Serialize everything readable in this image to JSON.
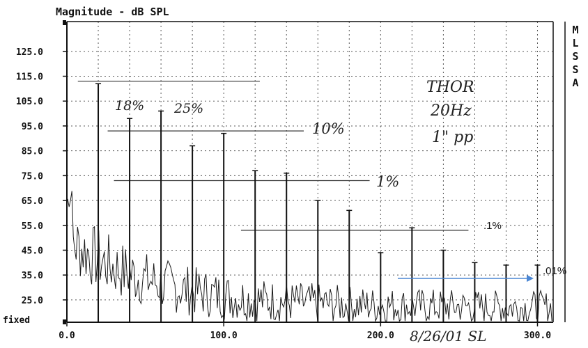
{
  "chart_data": {
    "type": "line",
    "title": "Magnitude - dB SPL",
    "side_label": [
      "M",
      "L",
      "S",
      "S",
      "A"
    ],
    "xlim": [
      0,
      310
    ],
    "ylim": [
      16,
      137
    ],
    "x_ticks": [
      0,
      100,
      200,
      300
    ],
    "x_tick_labels": [
      "0.0",
      "100.0",
      "200.0",
      "300.0"
    ],
    "y_ticks": [
      25,
      35,
      45,
      55,
      65,
      75,
      85,
      95,
      105,
      115,
      125
    ],
    "y_tick_labels": [
      "25.0",
      "35.0",
      "45.0",
      "55.0",
      "65.0",
      "75.0",
      "85.0",
      "95.0",
      "105.0",
      "115.0",
      "125.0"
    ],
    "y_bottom_label": "fixed",
    "grid": true,
    "series": [
      {
        "values": [
          {
            "x": 20,
            "y": 112
          },
          {
            "x": 40,
            "y": 98
          },
          {
            "x": 60,
            "y": 101
          },
          {
            "x": 80,
            "y": 87
          },
          {
            "x": 100,
            "y": 92
          },
          {
            "x": 120,
            "y": 77
          },
          {
            "x": 140,
            "y": 76
          },
          {
            "x": 160,
            "y": 65
          },
          {
            "x": 180,
            "y": 61
          },
          {
            "x": 200,
            "y": 44
          },
          {
            "x": 220,
            "y": 54
          },
          {
            "x": 240,
            "y": 45
          },
          {
            "x": 260,
            "y": 40
          },
          {
            "x": 280,
            "y": 39
          },
          {
            "x": 300,
            "y": 39
          }
        ]
      }
    ],
    "reference_lines": [
      {
        "y": 113,
        "x1": 7,
        "x2": 123
      },
      {
        "y": 93,
        "x1": 26,
        "x2": 151
      },
      {
        "y": 73,
        "x1": 30,
        "x2": 193
      },
      {
        "y": 53,
        "x1": 111,
        "x2": 256
      }
    ],
    "annotations": {
      "pct_18": "18%",
      "pct_25": "25%",
      "pct_10": "10%",
      "pct_1": "1%",
      "pct_01": ".1%",
      "pct_001": ".01%",
      "note_line1": "THOR",
      "note_line2": "20Hz",
      "note_line3": "1\" pp",
      "date_sig": "8/26/01 SL"
    },
    "arrow_color": "#4a86d4"
  }
}
